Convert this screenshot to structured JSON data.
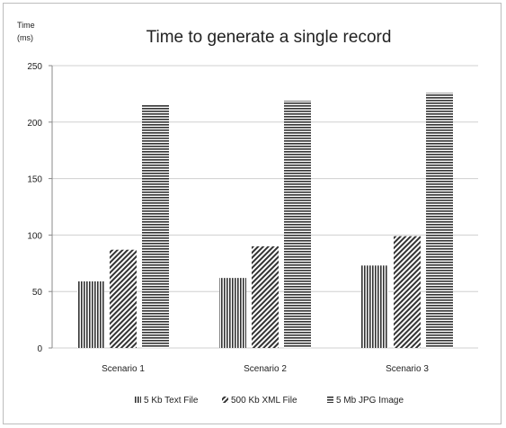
{
  "chart_data": {
    "type": "bar",
    "title": "Time to generate a single record",
    "ylabel_line1": "Time",
    "ylabel_line2": "(ms)",
    "xlabel": "",
    "ylim": [
      0,
      250
    ],
    "yticks": [
      0,
      50,
      100,
      150,
      200,
      250
    ],
    "categories": [
      "Scenario 1",
      "Scenario 2",
      "Scenario 3"
    ],
    "series": [
      {
        "name": "5 Kb Text File",
        "values": [
          59,
          62,
          73
        ],
        "pattern": "vertical-lines",
        "color": "#333333"
      },
      {
        "name": "500 Kb XML File",
        "values": [
          87,
          90,
          99
        ],
        "pattern": "diagonal-lines",
        "color": "#333333"
      },
      {
        "name": "5 Mb JPG Image",
        "values": [
          215,
          219,
          226
        ],
        "pattern": "horizontal-lines",
        "color": "#333333"
      }
    ],
    "grid": true,
    "legend_position": "bottom"
  }
}
